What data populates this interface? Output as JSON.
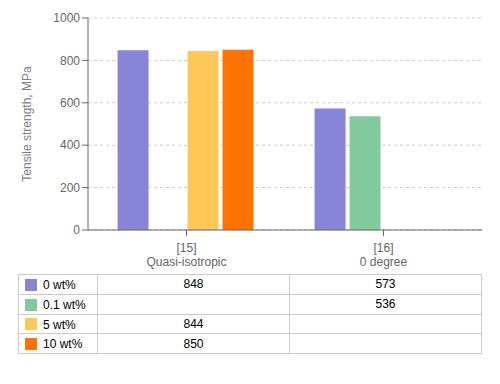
{
  "chart_data": {
    "type": "bar",
    "ylabel": "Tensile strength, MPa",
    "categories": [
      "[15]\nQuasi-isotropic",
      "[16]\n0 degree"
    ],
    "series": [
      {
        "name": "0 wt%",
        "color": "#8884d8",
        "values": [
          848,
          573
        ]
      },
      {
        "name": "0.1 wt%",
        "color": "#82ca9d",
        "values": [
          null,
          536
        ]
      },
      {
        "name": "5 wt%",
        "color": "#ffc658",
        "values": [
          844,
          null
        ]
      },
      {
        "name": "10 wt%",
        "color": "#ff7300",
        "values": [
          850,
          null
        ]
      }
    ],
    "ylim": [
      0,
      1000
    ],
    "yticks": [
      0,
      200,
      400,
      600,
      800,
      1000
    ],
    "grid": true,
    "legend": "bottom"
  }
}
